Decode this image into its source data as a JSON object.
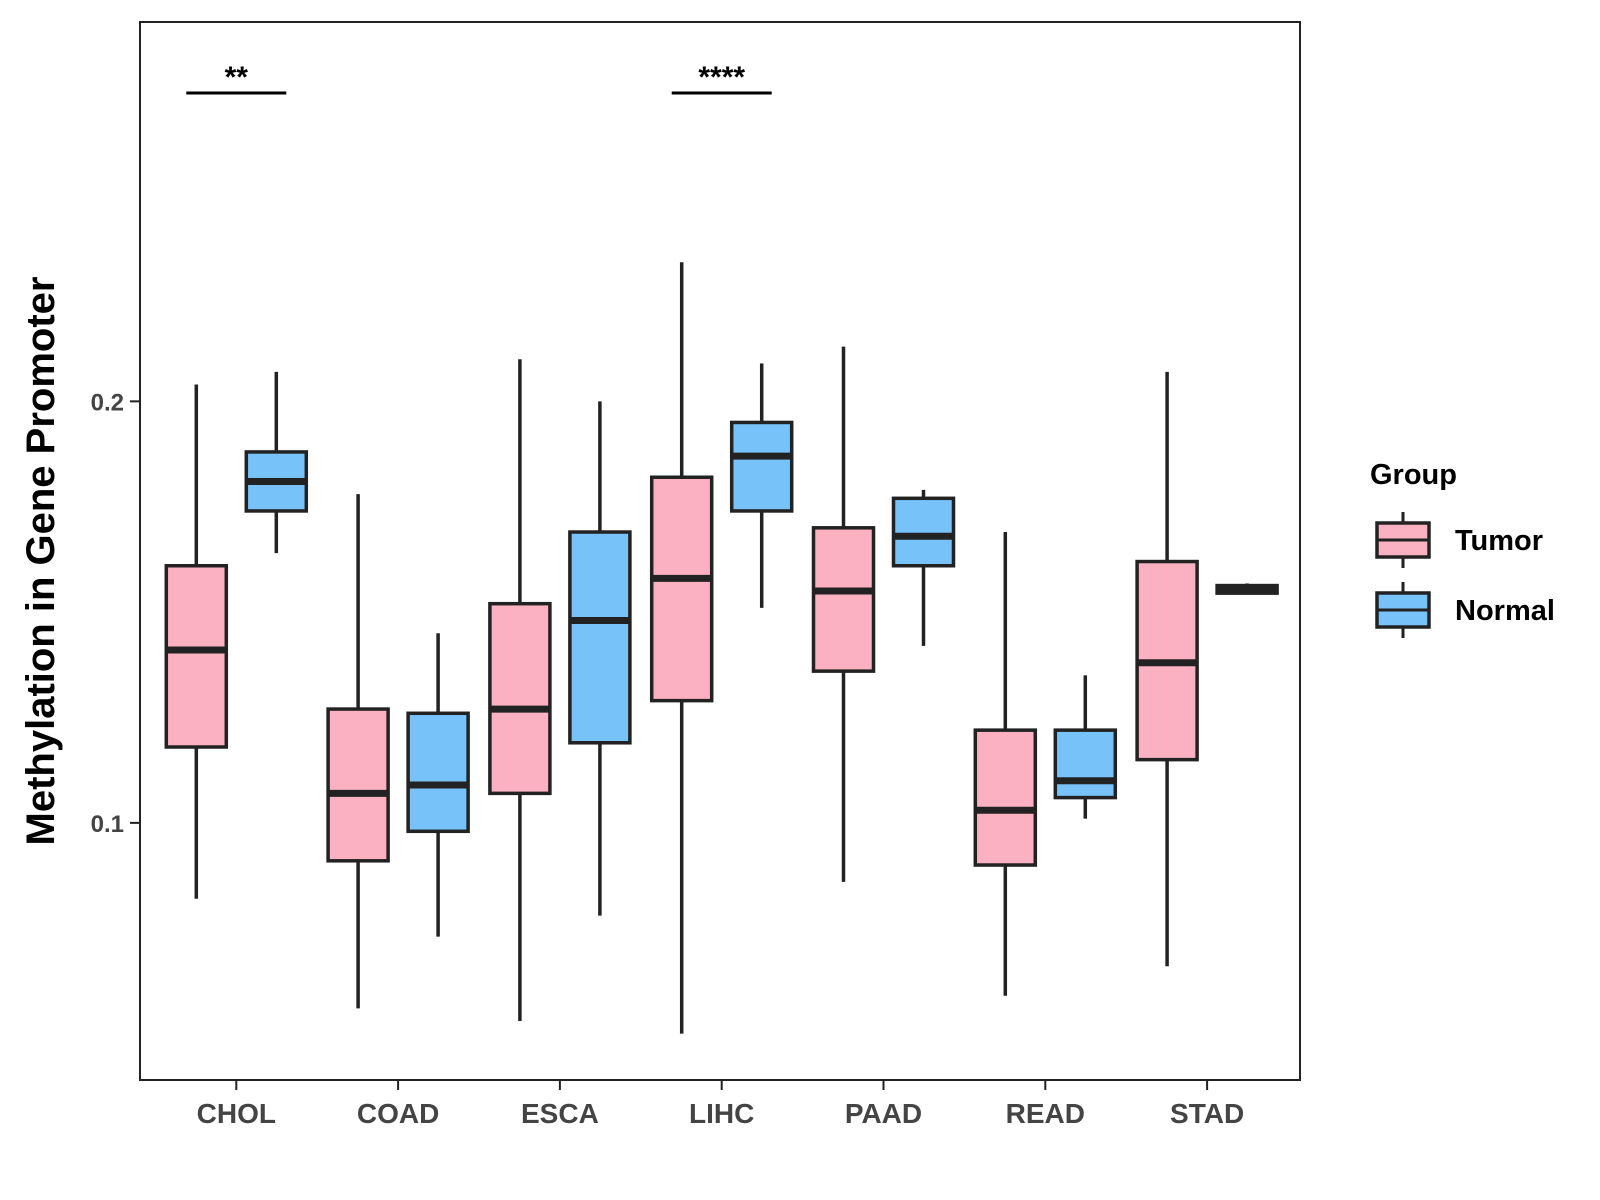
{
  "chart_data": {
    "type": "boxplot",
    "title": "",
    "xlabel": "",
    "ylabel": "Methylation in Gene Promoter",
    "ylim": [
      0.039,
      0.29
    ],
    "yticks": [
      0.1,
      0.2
    ],
    "ytick_labels": [
      "0.1",
      "0.2"
    ],
    "categories": [
      "CHOL",
      "COAD",
      "ESCA",
      "LIHC",
      "PAAD",
      "READ",
      "STAD"
    ],
    "grid": false,
    "legend": {
      "title": "Group",
      "position": "right"
    },
    "series": [
      {
        "name": "Tumor",
        "color": "#FBB1C2",
        "boxes": [
          {
            "min": 0.082,
            "q1": 0.118,
            "median": 0.141,
            "q3": 0.161,
            "max": 0.204
          },
          {
            "min": 0.056,
            "q1": 0.091,
            "median": 0.107,
            "q3": 0.127,
            "max": 0.178
          },
          {
            "min": 0.053,
            "q1": 0.107,
            "median": 0.127,
            "q3": 0.152,
            "max": 0.21
          },
          {
            "min": 0.05,
            "q1": 0.129,
            "median": 0.158,
            "q3": 0.182,
            "max": 0.233
          },
          {
            "min": 0.086,
            "q1": 0.136,
            "median": 0.155,
            "q3": 0.17,
            "max": 0.213
          },
          {
            "min": 0.059,
            "q1": 0.09,
            "median": 0.103,
            "q3": 0.122,
            "max": 0.169
          },
          {
            "min": 0.066,
            "q1": 0.115,
            "median": 0.138,
            "q3": 0.162,
            "max": 0.207
          }
        ]
      },
      {
        "name": "Normal",
        "color": "#77C2F9",
        "boxes": [
          {
            "min": 0.164,
            "q1": 0.174,
            "median": 0.181,
            "q3": 0.188,
            "max": 0.207
          },
          {
            "min": 0.073,
            "q1": 0.098,
            "median": 0.109,
            "q3": 0.126,
            "max": 0.145
          },
          {
            "min": 0.078,
            "q1": 0.119,
            "median": 0.148,
            "q3": 0.169,
            "max": 0.2
          },
          {
            "min": 0.151,
            "q1": 0.174,
            "median": 0.187,
            "q3": 0.195,
            "max": 0.209
          },
          {
            "min": 0.142,
            "q1": 0.161,
            "median": 0.168,
            "q3": 0.177,
            "max": 0.179
          },
          {
            "min": 0.101,
            "q1": 0.106,
            "median": 0.11,
            "q3": 0.122,
            "max": 0.135
          },
          {
            "min": 0.1545,
            "q1": 0.1545,
            "median": 0.1553,
            "q3": 0.1563,
            "max": 0.1568
          }
        ]
      }
    ],
    "annotations": [
      {
        "category": "CHOL",
        "label": "**"
      },
      {
        "category": "LIHC",
        "label": "****"
      }
    ],
    "axis_color": "#222222",
    "box_edge_color": "#222222"
  }
}
